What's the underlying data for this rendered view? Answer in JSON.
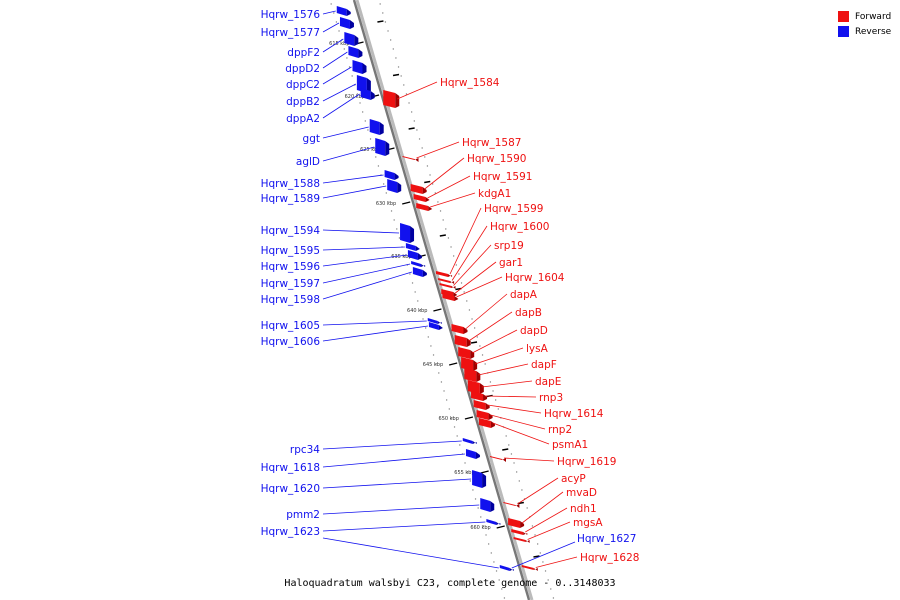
{
  "legend": {
    "forward_label": "Forward",
    "reverse_label": "Reverse",
    "forward_color": "#ee1111",
    "reverse_color": "#1111ee"
  },
  "caption": "Haloquadratum walsbyi C23, complete genome - 0..3148033",
  "ticks": [
    "615 kbp",
    "620 kbp",
    "625 kbp",
    "630 kbp",
    "635 kbp",
    "640 kbp",
    "645 kbp",
    "650 kbp",
    "655 kbp",
    "660 kbp"
  ],
  "reverse_genes": [
    "Hqrw_1576",
    "Hqrw_1577",
    "dppF2",
    "dppD2",
    "dppC2",
    "dppB2",
    "dppA2",
    "ggt",
    "aglD",
    "Hqrw_1588",
    "Hqrw_1589",
    "Hqrw_1594",
    "Hqrw_1595",
    "Hqrw_1596",
    "Hqrw_1597",
    "Hqrw_1598",
    "Hqrw_1605",
    "Hqrw_1606",
    "rpc34",
    "Hqrw_1618",
    "Hqrw_1620",
    "pmm2",
    "Hqrw_1623",
    "Hqrw_1627"
  ],
  "forward_genes": [
    "Hqrw_1584",
    "Hqrw_1587",
    "Hqrw_1590",
    "Hqrw_1591",
    "kdgA1",
    "Hqrw_1599",
    "Hqrw_1600",
    "srp19",
    "gar1",
    "Hqrw_1604",
    "dapA",
    "dapB",
    "dapD",
    "lysA",
    "dapF",
    "dapE",
    "rnp3",
    "Hqrw_1614",
    "rnp2",
    "psmA1",
    "Hqrw_1619",
    "acyP",
    "mvaD",
    "ndh1",
    "mgsA",
    "Hqrw_1628"
  ]
}
